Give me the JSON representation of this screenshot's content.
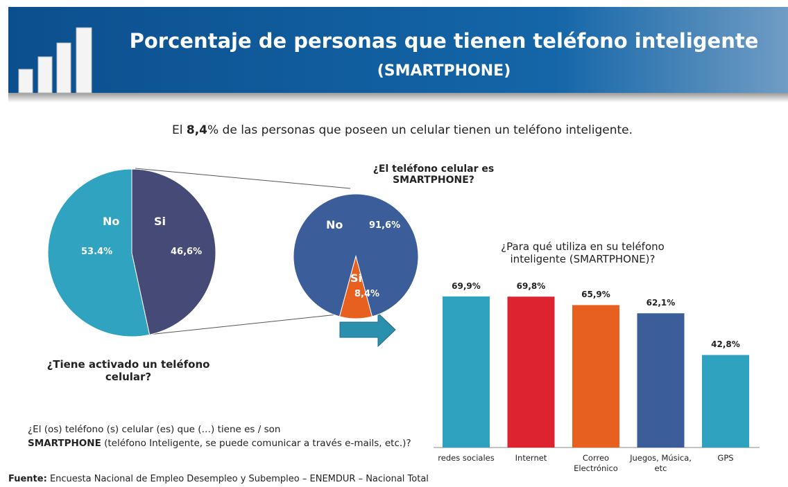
{
  "header": {
    "title": "Porcentaje de personas que tienen teléfono inteligente",
    "subtitle": "(SMARTPHONE)"
  },
  "headline": {
    "lead": "El",
    "highlight": "8,4",
    "rest": "% de las personas que poseen un celular tienen un teléfono inteligente."
  },
  "chart_data": [
    {
      "type": "pie",
      "title": "¿Tiene activado un teléfono celular?",
      "categories": [
        "No",
        "Si"
      ],
      "values": [
        53.4,
        46.6
      ],
      "value_labels": [
        "53.4%",
        "46,6%"
      ],
      "colors": [
        "#2fa3c0",
        "#454a77"
      ]
    },
    {
      "type": "pie",
      "title": "¿El teléfono celular es SMARTPHONE?",
      "categories": [
        "No",
        "Si"
      ],
      "values": [
        91.6,
        8.4
      ],
      "value_labels": [
        "91,6%",
        "8,4%"
      ],
      "colors": [
        "#3b5e9a",
        "#e8601f"
      ]
    },
    {
      "type": "bar",
      "title": "¿Para qué utiliza en su teléfono inteligente (SMARTPHONE)?",
      "categories": [
        "redes sociales",
        "Internet",
        "Correo Electrónico",
        "Juegos, Música, etc",
        "GPS"
      ],
      "values": [
        69.9,
        69.8,
        65.9,
        62.1,
        42.8
      ],
      "value_labels": [
        "69,9%",
        "69,8%",
        "65,9%",
        "62,1%",
        "42,8%"
      ],
      "colors": [
        "#2ea2bf",
        "#dd2330",
        "#e8601f",
        "#3b5e9a",
        "#2ea2bf"
      ]
    }
  ],
  "question": {
    "lead": "¿El (os) teléfono (s) celular (es) que (…) tiene es / son",
    "highlight": "SMARTPHONE",
    "rest": "(teléfono Inteligente, se puede comunicar a través  e-mails, etc.)?"
  },
  "source": {
    "label": "Fuente:",
    "text": "Encuesta Nacional de Empleo Desempleo y Subempleo – ENEMDUR – Nacional  Total"
  }
}
